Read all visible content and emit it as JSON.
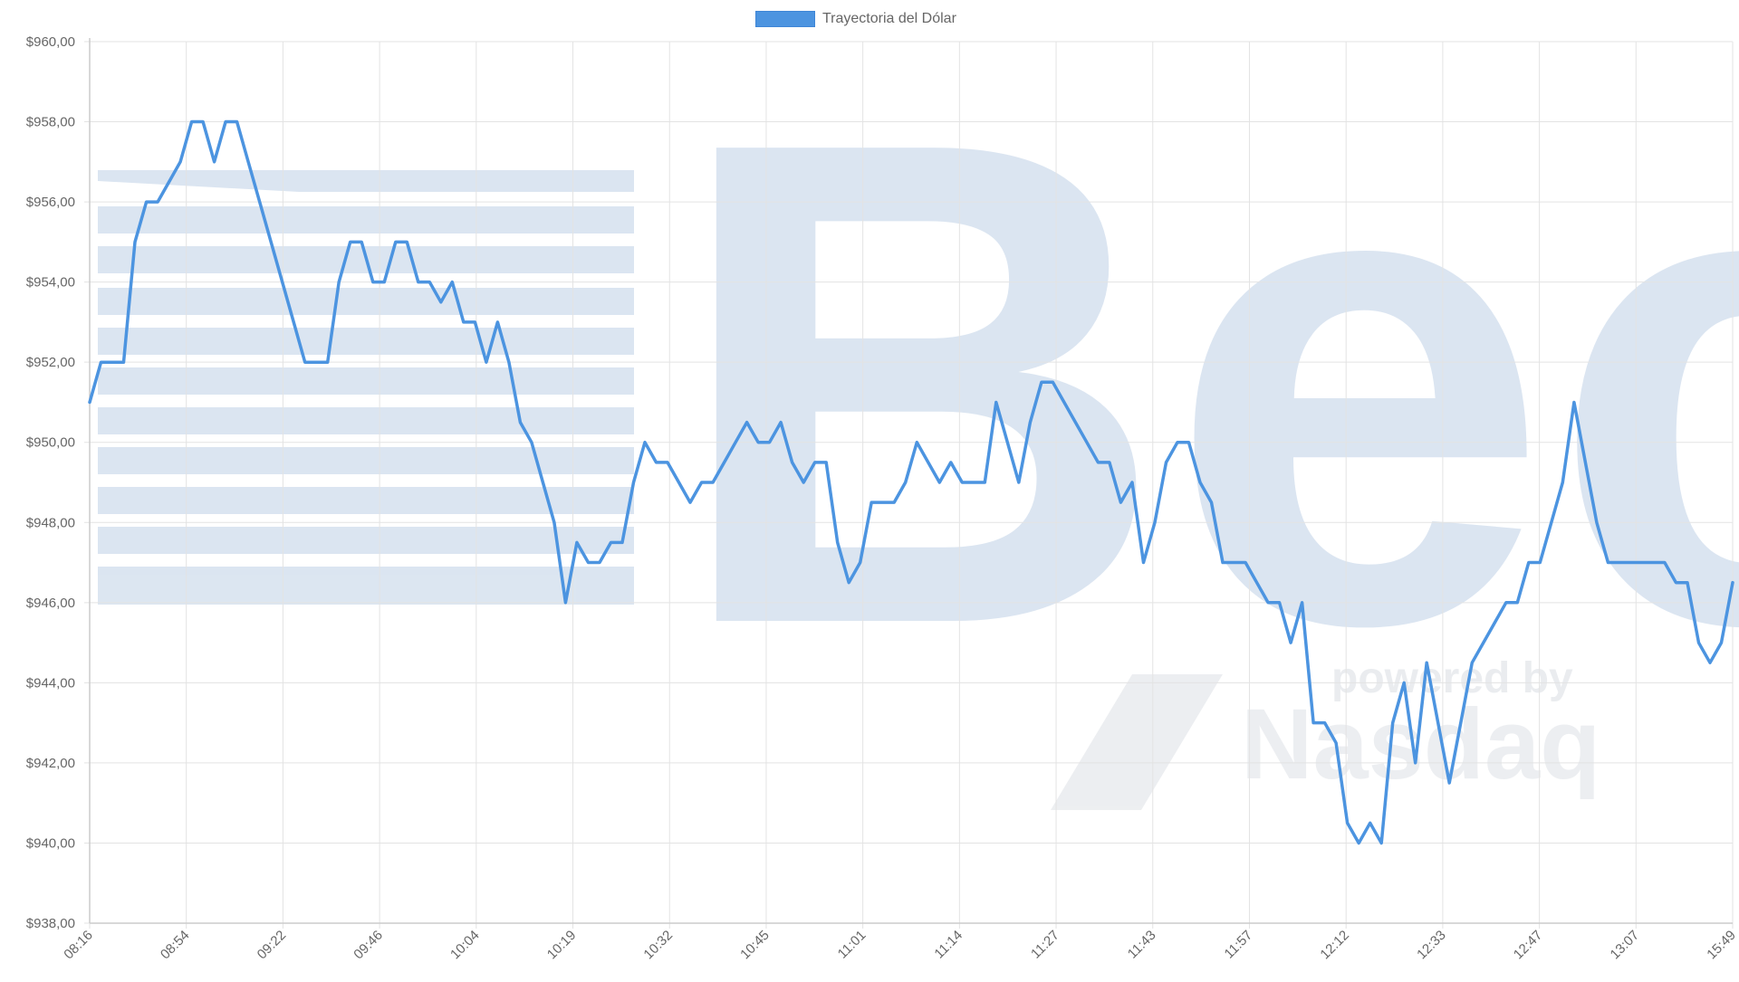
{
  "chart_data": {
    "type": "line",
    "legend": {
      "placement": "top-center",
      "label": "Trayectoria del Dólar"
    },
    "grid": true,
    "ylim": [
      938,
      960
    ],
    "y_ticks": [
      "$938,00",
      "$940,00",
      "$942,00",
      "$944,00",
      "$946,00",
      "$948,00",
      "$950,00",
      "$952,00",
      "$954,00",
      "$956,00",
      "$958,00",
      "$960,00"
    ],
    "x_ticks": [
      "08:16",
      "08:54",
      "09:22",
      "09:46",
      "10:04",
      "10:19",
      "10:32",
      "10:45",
      "11:01",
      "11:14",
      "11:27",
      "11:43",
      "11:57",
      "12:12",
      "12:33",
      "12:47",
      "13:07",
      "15:49"
    ],
    "series": [
      {
        "name": "Trayectoria del Dólar",
        "color": "#4c94e0",
        "values": [
          951,
          952,
          952,
          952,
          955,
          956,
          956,
          956.5,
          957,
          958,
          958,
          957,
          958,
          958,
          957,
          956,
          955,
          954,
          953,
          952,
          952,
          952,
          954,
          955,
          955,
          954,
          954,
          955,
          955,
          954,
          954,
          953.5,
          954,
          953,
          953,
          952,
          953,
          952,
          950.5,
          950,
          949,
          948,
          946,
          947.5,
          947,
          947,
          947.5,
          947.5,
          949,
          950,
          949.5,
          949.5,
          949,
          948.5,
          949,
          949,
          949.5,
          950,
          950.5,
          950,
          950,
          950.5,
          949.5,
          949,
          949.5,
          949.5,
          947.5,
          946.5,
          947,
          948.5,
          948.5,
          948.5,
          949,
          950,
          949.5,
          949,
          949.5,
          949,
          949,
          949,
          951,
          950,
          949,
          950.5,
          951.5,
          951.5,
          951,
          950.5,
          950,
          949.5,
          949.5,
          948.5,
          949,
          947,
          948,
          949.5,
          950,
          950,
          949,
          948.5,
          947,
          947,
          947,
          946.5,
          946,
          946,
          945,
          946,
          943,
          943,
          942.5,
          940.5,
          940,
          940.5,
          940,
          943,
          944,
          942,
          944.5,
          943,
          941.5,
          943,
          944.5,
          945,
          945.5,
          946,
          946,
          947,
          947,
          948,
          949,
          951,
          949.5,
          948,
          947,
          947,
          947,
          947,
          947,
          947,
          946.5,
          946.5,
          945,
          944.5,
          945,
          946.5
        ]
      }
    ]
  },
  "watermark": {
    "logo_text": "Bec",
    "powered_by": "powered by",
    "nasdaq": "Nasdaq"
  }
}
